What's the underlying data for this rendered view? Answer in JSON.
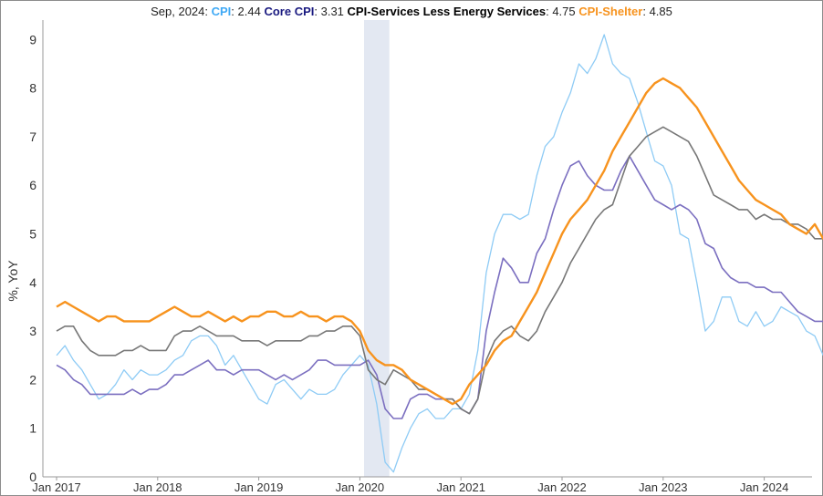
{
  "legend": {
    "date": "Sep, 2024",
    "items": [
      {
        "name": "CPI",
        "value": "2.44",
        "color": "#3fa9f5"
      },
      {
        "name": "Core CPI",
        "value": "3.31",
        "color": "#1a1a80"
      },
      {
        "name": "CPI-Services Less Energy Services",
        "value": "4.75",
        "color": "#000000"
      },
      {
        "name": "CPI-Shelter",
        "value": "4.85",
        "color": "#f7931e"
      }
    ]
  },
  "chart_data": {
    "type": "line",
    "ylabel": "%, YoY",
    "ylim": [
      0,
      9.4
    ],
    "yticks": [
      0,
      1,
      2,
      3,
      4,
      5,
      6,
      7,
      8,
      9
    ],
    "x_start": "2017-01",
    "x_end": "2024-09",
    "xticks": [
      "Jan 2017",
      "Jan 2018",
      "Jan 2019",
      "Jan 2020",
      "Jan 2021",
      "Jan 2022",
      "Jan 2023",
      "Jan 2024"
    ],
    "recession_band": {
      "start": "2020-02",
      "end": "2020-04"
    },
    "series": [
      {
        "name": "CPI",
        "color": "#8ecbf5",
        "values": [
          2.5,
          2.7,
          2.4,
          2.2,
          1.9,
          1.6,
          1.7,
          1.9,
          2.2,
          2.0,
          2.2,
          2.1,
          2.1,
          2.2,
          2.4,
          2.5,
          2.8,
          2.9,
          2.9,
          2.7,
          2.3,
          2.5,
          2.2,
          1.9,
          1.6,
          1.5,
          1.9,
          2.0,
          1.8,
          1.6,
          1.8,
          1.7,
          1.7,
          1.8,
          2.1,
          2.3,
          2.5,
          2.3,
          1.5,
          0.3,
          0.1,
          0.6,
          1.0,
          1.3,
          1.4,
          1.2,
          1.2,
          1.4,
          1.4,
          1.7,
          2.6,
          4.2,
          5.0,
          5.4,
          5.4,
          5.3,
          5.4,
          6.2,
          6.8,
          7.0,
          7.5,
          7.9,
          8.5,
          8.3,
          8.6,
          9.1,
          8.5,
          8.3,
          8.2,
          7.7,
          7.1,
          6.5,
          6.4,
          6.0,
          5.0,
          4.9,
          4.0,
          3.0,
          3.2,
          3.7,
          3.7,
          3.2,
          3.1,
          3.4,
          3.1,
          3.2,
          3.5,
          3.4,
          3.3,
          3.0,
          2.9,
          2.5,
          2.44
        ]
      },
      {
        "name": "Core CPI",
        "color": "#7b6fc0",
        "values": [
          2.3,
          2.2,
          2.0,
          1.9,
          1.7,
          1.7,
          1.7,
          1.7,
          1.7,
          1.8,
          1.7,
          1.8,
          1.8,
          1.9,
          2.1,
          2.1,
          2.2,
          2.3,
          2.4,
          2.2,
          2.2,
          2.1,
          2.2,
          2.2,
          2.2,
          2.1,
          2.0,
          2.1,
          2.0,
          2.1,
          2.2,
          2.4,
          2.4,
          2.3,
          2.3,
          2.3,
          2.3,
          2.4,
          2.1,
          1.4,
          1.2,
          1.2,
          1.6,
          1.7,
          1.7,
          1.6,
          1.6,
          1.6,
          1.4,
          1.3,
          1.6,
          3.0,
          3.8,
          4.5,
          4.3,
          4.0,
          4.0,
          4.6,
          4.9,
          5.5,
          6.0,
          6.4,
          6.5,
          6.2,
          6.0,
          5.9,
          5.9,
          6.3,
          6.6,
          6.3,
          6.0,
          5.7,
          5.6,
          5.5,
          5.6,
          5.5,
          5.3,
          4.8,
          4.7,
          4.3,
          4.1,
          4.0,
          4.0,
          3.9,
          3.9,
          3.8,
          3.8,
          3.6,
          3.4,
          3.3,
          3.2,
          3.2,
          3.31
        ]
      },
      {
        "name": "CPI-Services Less Energy Services",
        "color": "#777777",
        "values": [
          3.0,
          3.1,
          3.1,
          2.8,
          2.6,
          2.5,
          2.5,
          2.5,
          2.6,
          2.6,
          2.7,
          2.6,
          2.6,
          2.6,
          2.9,
          3.0,
          3.0,
          3.1,
          3.0,
          2.9,
          2.9,
          2.9,
          2.8,
          2.8,
          2.8,
          2.7,
          2.8,
          2.8,
          2.8,
          2.8,
          2.9,
          2.9,
          3.0,
          3.0,
          3.1,
          3.1,
          2.9,
          2.2,
          2.0,
          1.9,
          2.2,
          2.1,
          2.0,
          1.8,
          1.8,
          1.7,
          1.6,
          1.6,
          1.4,
          1.3,
          1.6,
          2.4,
          2.8,
          3.0,
          3.1,
          2.9,
          2.8,
          3.0,
          3.4,
          3.7,
          4.0,
          4.4,
          4.7,
          5.0,
          5.3,
          5.5,
          5.6,
          6.1,
          6.6,
          6.8,
          7.0,
          7.1,
          7.2,
          7.1,
          7.0,
          6.9,
          6.6,
          6.2,
          5.8,
          5.7,
          5.6,
          5.5,
          5.5,
          5.3,
          5.4,
          5.3,
          5.3,
          5.2,
          5.2,
          5.1,
          4.9,
          4.9,
          4.75
        ]
      },
      {
        "name": "CPI-Shelter",
        "color": "#f7931e",
        "values": [
          3.5,
          3.6,
          3.5,
          3.4,
          3.3,
          3.2,
          3.3,
          3.3,
          3.2,
          3.2,
          3.2,
          3.2,
          3.3,
          3.4,
          3.5,
          3.4,
          3.3,
          3.3,
          3.4,
          3.3,
          3.2,
          3.3,
          3.2,
          3.3,
          3.3,
          3.4,
          3.4,
          3.3,
          3.3,
          3.4,
          3.3,
          3.3,
          3.2,
          3.3,
          3.3,
          3.2,
          3.0,
          2.6,
          2.4,
          2.3,
          2.3,
          2.2,
          2.0,
          1.9,
          1.8,
          1.7,
          1.6,
          1.5,
          1.6,
          1.9,
          2.1,
          2.3,
          2.6,
          2.8,
          2.9,
          3.2,
          3.5,
          3.8,
          4.2,
          4.6,
          5.0,
          5.3,
          5.5,
          5.7,
          6.0,
          6.3,
          6.7,
          7.0,
          7.3,
          7.6,
          7.9,
          8.1,
          8.2,
          8.1,
          8.0,
          7.8,
          7.6,
          7.3,
          7.0,
          6.7,
          6.4,
          6.1,
          5.9,
          5.7,
          5.6,
          5.5,
          5.4,
          5.2,
          5.1,
          5.0,
          5.2,
          4.9,
          4.85
        ]
      }
    ]
  }
}
